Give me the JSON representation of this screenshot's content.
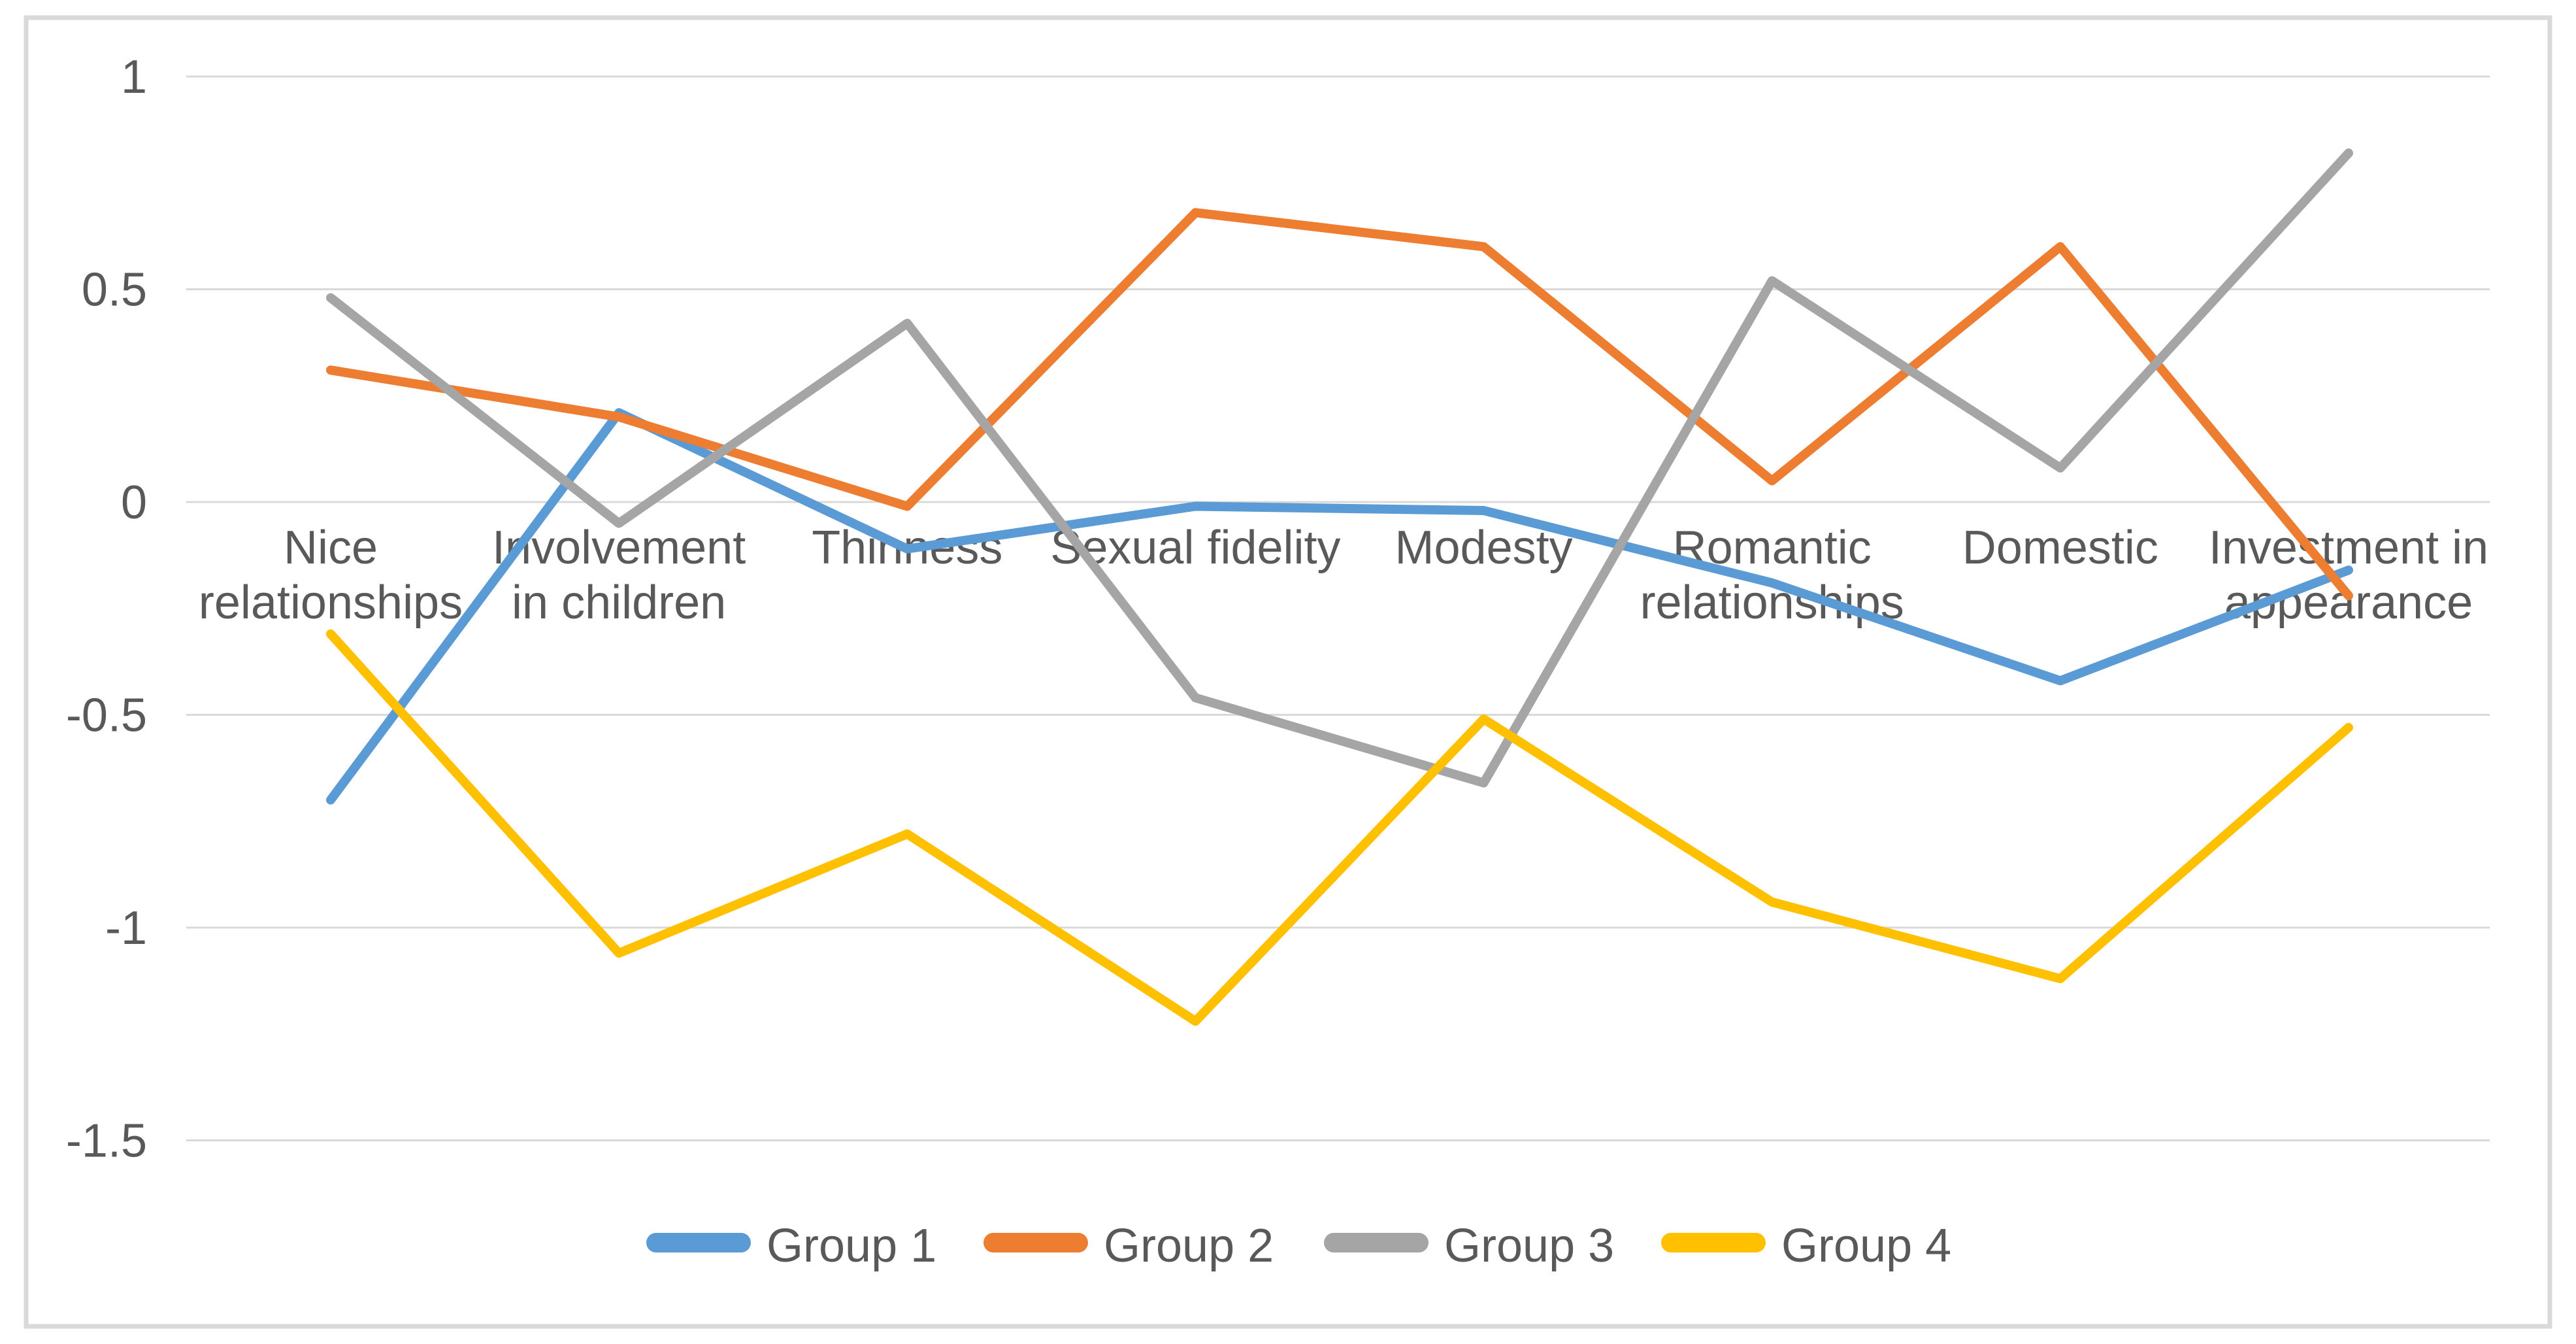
{
  "chart_data": {
    "type": "line",
    "title": "",
    "categories": [
      "Nice relationships",
      "Involvement in children",
      "Thinness",
      "Sexual fidelity",
      "Modesty",
      "Romantic relationships",
      "Domestic",
      "Investment in appearance"
    ],
    "categories_display": [
      "Nice\nrelationships",
      "Involvement\nin children",
      "Thinness",
      "Sexual fidelity",
      "Modesty",
      "Romantic\nrelationships",
      "Domestic",
      "Investment in\nappearance"
    ],
    "series": [
      {
        "name": "Group 1",
        "color": "#5B9BD5",
        "values": [
          -0.7,
          0.21,
          -0.11,
          -0.01,
          -0.02,
          -0.19,
          -0.42,
          -0.16
        ]
      },
      {
        "name": "Group 2",
        "color": "#ED7D31",
        "values": [
          0.31,
          0.2,
          -0.01,
          0.68,
          0.6,
          0.05,
          0.6,
          -0.22
        ]
      },
      {
        "name": "Group 3",
        "color": "#A5A5A5",
        "values": [
          0.48,
          -0.05,
          0.42,
          -0.46,
          -0.66,
          0.52,
          0.08,
          0.82
        ]
      },
      {
        "name": "Group 4",
        "color": "#FFC000",
        "values": [
          -0.31,
          -1.06,
          -0.78,
          -1.22,
          -0.51,
          -0.94,
          -1.12,
          -0.53
        ]
      }
    ],
    "y_axis": {
      "min": -1.5,
      "max": 1,
      "tick_step": 0.5,
      "tick_labels": [
        "1",
        "0.5",
        "0",
        "-0.5",
        "-1",
        "-1.5"
      ]
    },
    "grid": true,
    "legend_position": "bottom",
    "colors": {
      "text": "#595959",
      "gridline": "#D9D9D9",
      "border": "#D9D9D9",
      "background": "#FFFFFF"
    }
  }
}
